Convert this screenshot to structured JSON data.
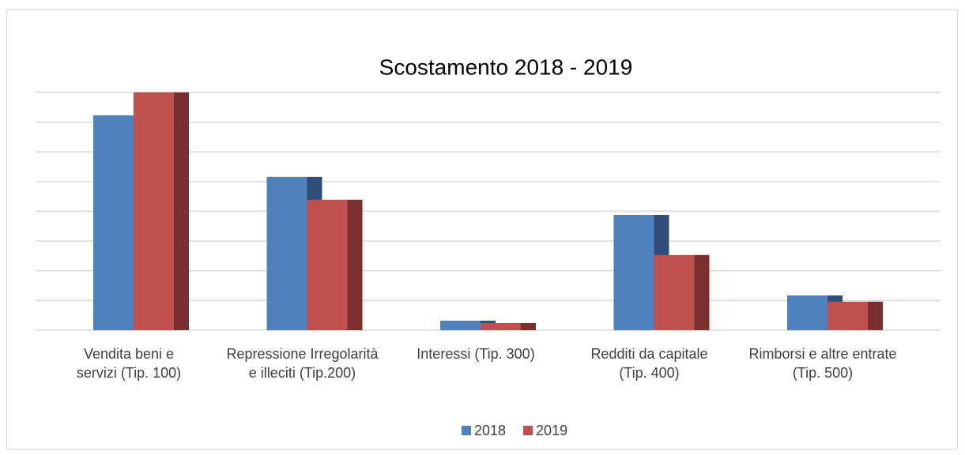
{
  "chart_data": {
    "type": "bar3d",
    "title": "Scostamento 2018 - 2019",
    "categories": [
      "Vendita beni e servizi (Tip. 100)",
      "Repressione Irregolarità e illeciti (Tip.200)",
      "Interessi (Tip. 300)",
      "Redditi da capitale (Tip. 400)",
      "Rimborsi e altre entrate (Tip. 500)"
    ],
    "series": [
      {
        "name": "2018",
        "color": "#4f81bd",
        "side": "#2f4f7a",
        "values": [
          7.23,
          5.16,
          0.32,
          3.88,
          1.17
        ]
      },
      {
        "name": "2019",
        "color": "#c0504d",
        "side": "#7a2f2e",
        "values": [
          8.0,
          4.39,
          0.24,
          2.53,
          0.96
        ]
      }
    ],
    "ylim": [
      0,
      8
    ],
    "yticks": [
      0,
      1,
      2,
      3,
      4,
      5,
      6,
      7,
      8
    ],
    "grid": true,
    "legend": "bottom"
  }
}
